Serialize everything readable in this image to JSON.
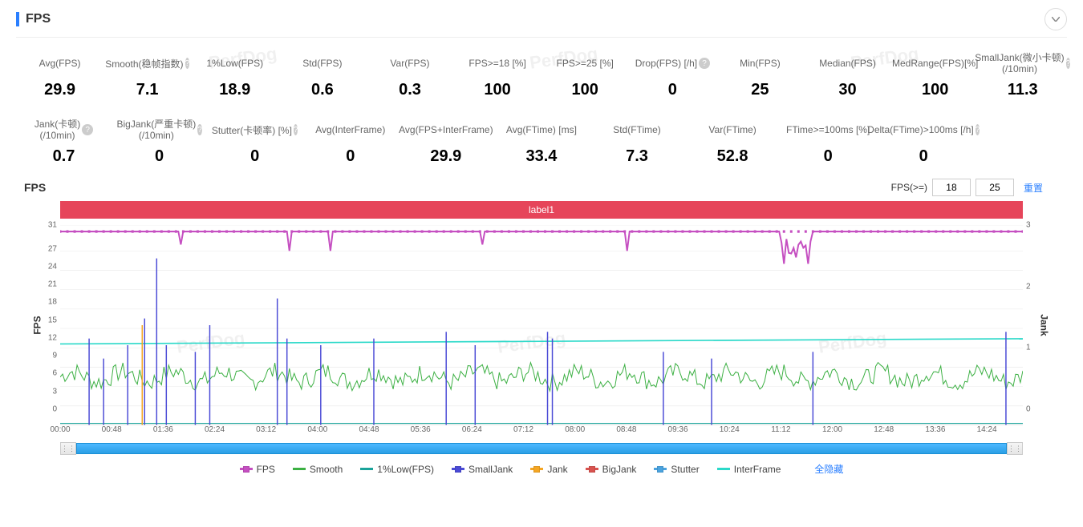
{
  "header": {
    "title": "FPS"
  },
  "metrics_row1": [
    {
      "label": "Avg(FPS)",
      "value": "29.9"
    },
    {
      "label": "Smooth(稳帧指数)",
      "value": "7.1",
      "help": true
    },
    {
      "label": "1%Low(FPS)",
      "value": "18.9"
    },
    {
      "label": "Std(FPS)",
      "value": "0.6"
    },
    {
      "label": "Var(FPS)",
      "value": "0.3"
    },
    {
      "label": "FPS>=18 [%]",
      "value": "100"
    },
    {
      "label": "FPS>=25 [%]",
      "value": "100"
    },
    {
      "label": "Drop(FPS) [/h]",
      "value": "0",
      "help": true
    },
    {
      "label": "Min(FPS)",
      "value": "25"
    },
    {
      "label": "Median(FPS)",
      "value": "30"
    },
    {
      "label": "MedRange(FPS)[%]",
      "value": "100"
    },
    {
      "label": "SmallJank(微小卡顿)(/10min)",
      "value": "11.3",
      "help": true,
      "twoLine": true
    }
  ],
  "metrics_row2": [
    {
      "label": "Jank(卡顿)(/10min)",
      "value": "0.7",
      "help": true,
      "twoLine": true
    },
    {
      "label": "BigJank(严重卡顿)(/10min)",
      "value": "0",
      "help": true,
      "twoLine": true
    },
    {
      "label": "Stutter(卡顿率) [%]",
      "value": "0",
      "help": true
    },
    {
      "label": "Avg(InterFrame)",
      "value": "0"
    },
    {
      "label": "Avg(FPS+InterFrame)",
      "value": "29.9"
    },
    {
      "label": "Avg(FTime) [ms]",
      "value": "33.4"
    },
    {
      "label": "Std(FTime)",
      "value": "7.3"
    },
    {
      "label": "Var(FTime)",
      "value": "52.8"
    },
    {
      "label": "FTime>=100ms [%]",
      "value": "0"
    },
    {
      "label": "Delta(FTime)>100ms [/h]",
      "value": "0",
      "help": true
    }
  ],
  "chart": {
    "title": "FPS",
    "fps_label": "FPS(>=)",
    "threshold1": "18",
    "threshold2": "25",
    "reset": "重置",
    "label_bar": "label1",
    "y_left_label": "FPS",
    "y_right_label": "Jank",
    "y_left_ticks": [
      0,
      3,
      6,
      9,
      12,
      15,
      18,
      21,
      24,
      27,
      31
    ],
    "y_right_ticks": [
      0,
      1,
      2,
      3
    ],
    "y_left_max": 31,
    "y_right_max": 3,
    "x_ticks": [
      "00:00",
      "00:48",
      "01:36",
      "02:24",
      "03:12",
      "04:00",
      "04:48",
      "05:36",
      "06:24",
      "07:12",
      "08:00",
      "08:48",
      "09:36",
      "10:24",
      "11:12",
      "12:00",
      "12:48",
      "13:36",
      "14:24"
    ],
    "colors": {
      "fps": "#c54fc1",
      "smooth": "#3cb043",
      "lowfps": "#1aa39a",
      "smalljank": "#4a4ad6",
      "jank": "#f5a623",
      "bigjank": "#d9534f",
      "stutter": "#4aa3df",
      "interframe": "#2bd9c9",
      "grid": "#e8e8e8",
      "axis": "#cccccc",
      "background": "#ffffff"
    },
    "interframe_value": 13
  },
  "legend": [
    {
      "name": "FPS",
      "color": "#c54fc1",
      "marker": "dot"
    },
    {
      "name": "Smooth",
      "color": "#3cb043"
    },
    {
      "name": "1%Low(FPS)",
      "color": "#1aa39a"
    },
    {
      "name": "SmallJank",
      "color": "#4a4ad6",
      "marker": "dot"
    },
    {
      "name": "Jank",
      "color": "#f5a623",
      "marker": "dot"
    },
    {
      "name": "BigJank",
      "color": "#d9534f",
      "marker": "dot"
    },
    {
      "name": "Stutter",
      "color": "#4aa3df",
      "marker": "dot"
    },
    {
      "name": "InterFrame",
      "color": "#2bd9c9"
    }
  ],
  "hide_all": "全隐藏",
  "watermark": "PerfDog"
}
